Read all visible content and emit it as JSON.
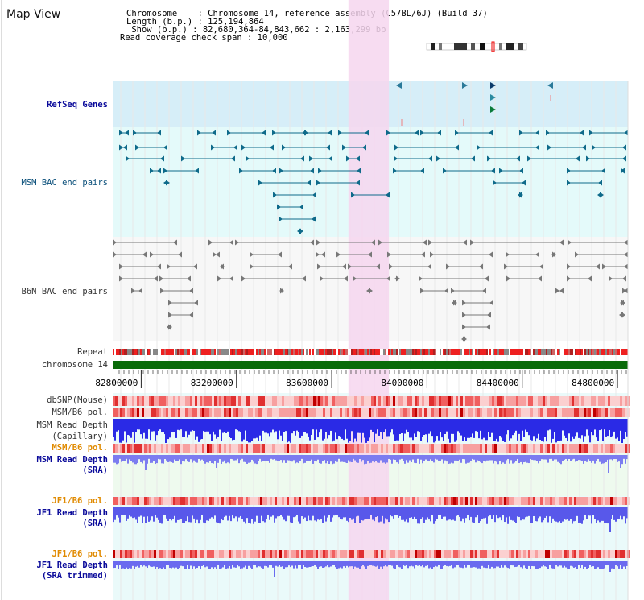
{
  "title": "Map View",
  "info": {
    "chromosome_label": "Chromosome    : Chromosome 14, reference assembly (C57BL/6J) (Build 37)",
    "length_label": "Length (b.p.) : 125,194,864",
    "show_label": " Show (b.p.) : 82,680,364-84,843,662 : 2,163,299 bp",
    "span_label": "Read coverage check span : 10,000"
  },
  "tracks": {
    "refseq": "RefSeq Genes",
    "msm_bac": "MSM BAC end pairs",
    "b6n_bac": "B6N BAC end pairs",
    "repeat": "Repeat",
    "chromosome": "chromosome 14",
    "dbsnp": "dbSNP(Mouse)",
    "msm_b6_pol_1": "MSM/B6 pol.",
    "msm_depth_cap": "MSM Read Depth",
    "msm_depth_cap_sub": "(Capillary)",
    "msm_b6_pol_2": "MSM/B6 pol.",
    "msm_depth_sra": "MSM Read Depth",
    "msm_depth_sra_sub": "(SRA)",
    "jf1_b6_pol_1": "JF1/B6 pol.",
    "jf1_depth_sra": "JF1 Read Depth",
    "jf1_depth_sra_sub": "(SRA)",
    "jf1_b6_pol_2": "JF1/B6 pol.",
    "jf1_depth_trim": "JF1 Read Depth",
    "jf1_depth_trim_sub": "(SRA trimmed)"
  },
  "axis_ticks": [
    "82800000",
    "83200000",
    "83600000",
    "84000000",
    "84400000",
    "84800000"
  ],
  "axis_tick_values": [
    82800000,
    83200000,
    83600000,
    84000000,
    84400000,
    84800000
  ],
  "range": {
    "start": 82680364,
    "end": 84843662
  },
  "highlight": {
    "start": 83670000,
    "end": 83840000
  },
  "colors": {
    "refseq_bg": "#d6eef8",
    "msm_bg": "#e4fafa",
    "b6n_bg": "#f7f7f7",
    "highlight": "#f6d6ef",
    "msm_feature": "#0e6a8a",
    "b6n_feature": "#777777",
    "chromosome": "#0a6b0a",
    "snp": "#f06060",
    "depth": "#3a3ae0",
    "depth_light": "#7f7ff0"
  }
}
